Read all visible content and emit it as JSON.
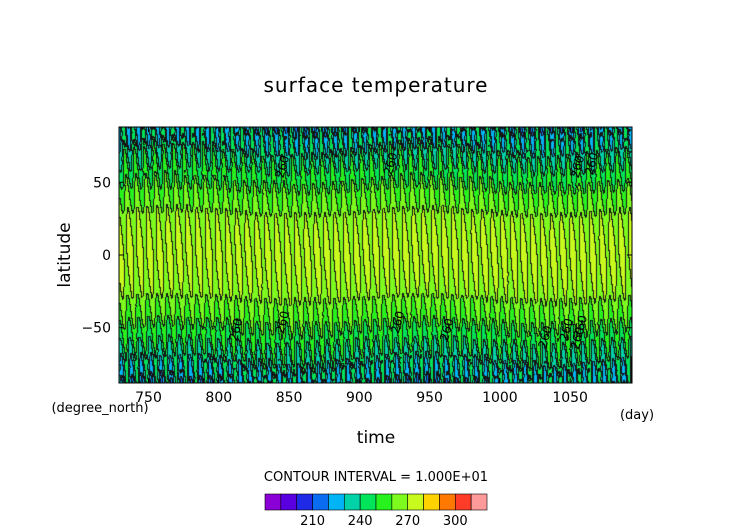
{
  "chart_data": {
    "type": "heatmap",
    "title": "surface temperature",
    "xlabel": "time",
    "ylabel": "latitude",
    "x_units": "(day)",
    "y_units": "(degree_north)",
    "xlim": [
      729,
      1094
    ],
    "ylim": [
      -88,
      88
    ],
    "x_ticks": [
      750,
      800,
      850,
      900,
      950,
      1000,
      1050
    ],
    "y_ticks": [
      -50,
      0,
      50
    ],
    "x_tick_labels": [
      "750",
      "800",
      "850",
      "900",
      "950",
      "1000",
      "1050"
    ],
    "y_tick_labels": [
      "−50",
      "0",
      "50"
    ],
    "contour_interval_text": "CONTOUR INTERVAL = 1.000E+01",
    "contour_interval": 10,
    "contour_labels": [
      "260",
      "260",
      "260",
      "260",
      "260",
      "260",
      "260",
      "260",
      "260",
      "260",
      "260",
      "260"
    ],
    "colorbar": {
      "levels": [
        190,
        200,
        210,
        220,
        230,
        240,
        250,
        260,
        270,
        280,
        290,
        300,
        310
      ],
      "colors": [
        "#8b00d6",
        "#5a00e0",
        "#1f2ae6",
        "#0a6cf0",
        "#00b4f5",
        "#00d2a8",
        "#00e45a",
        "#28f21e",
        "#7dfa1e",
        "#c8fa1e",
        "#ffd200",
        "#ff7800",
        "#ff3c28",
        "#ff9a9a"
      ],
      "tick_values": [
        210,
        240,
        270,
        300
      ],
      "tick_labels": [
        "210",
        "240",
        "270",
        "300"
      ]
    },
    "pattern": {
      "equator_max": 272,
      "pole_min": 232,
      "oscillation_period_days": 7,
      "seasonal_period_days": 180
    },
    "grid": false,
    "legend": "colorbar-bottom"
  }
}
